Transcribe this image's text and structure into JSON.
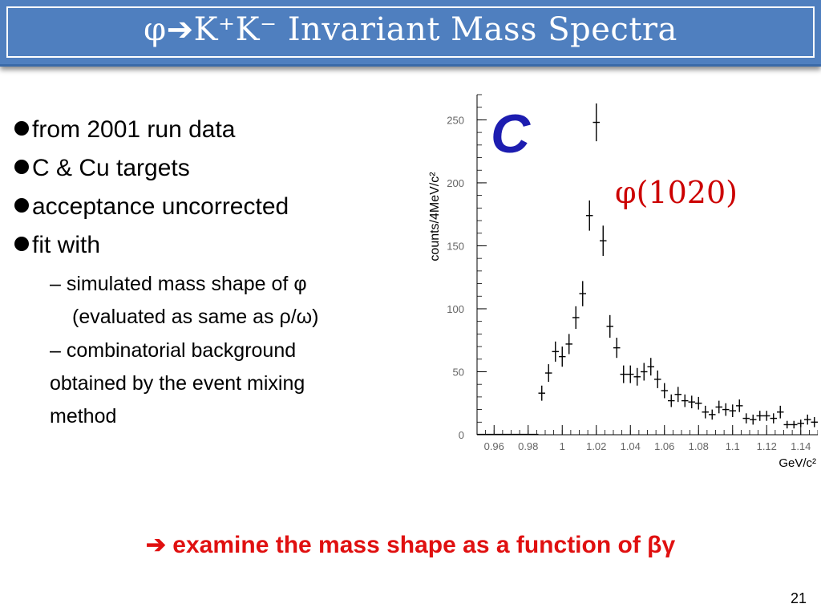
{
  "slide": {
    "title": "φ➔K⁺K⁻ Invariant Mass Spectra",
    "bullets": [
      "from 2001 run data",
      "C & Cu targets",
      "acceptance uncorrected",
      "fit with"
    ],
    "sub1_line1": "– simulated mass shape of φ",
    "sub1_line2": "(evaluated as same as ρ/ω)",
    "sub2_lines": [
      "– combinatorial background",
      "obtained by the event mixing",
      "method"
    ],
    "conclusion": "➔ examine the mass shape as a function of βγ",
    "page_number": "21",
    "accent_color": "#4f7fbf",
    "highlight_color": "#e01010"
  },
  "chart_data": {
    "type": "scatter",
    "panel_label": "C",
    "peak_label": "φ(1020)",
    "ylabel": "counts/4MeV/c²",
    "xlabel": "GeV/c²",
    "xlim": [
      0.95,
      1.15
    ],
    "ylim": [
      0,
      270
    ],
    "xticks": [
      0.96,
      0.98,
      1.0,
      1.02,
      1.04,
      1.06,
      1.08,
      1.1,
      1.12,
      1.14
    ],
    "xtick_labels": [
      "0.96",
      "0.98",
      "1",
      "1.02",
      "1.04",
      "1.06",
      "1.08",
      "1.1",
      "1.12",
      "1.14"
    ],
    "yticks": [
      0,
      50,
      100,
      150,
      200,
      250
    ],
    "ytick_labels": [
      "0",
      "50",
      "100",
      "150",
      "200",
      "250"
    ],
    "points": [
      {
        "x": 0.988,
        "y": 33,
        "err": 6
      },
      {
        "x": 0.992,
        "y": 49,
        "err": 7
      },
      {
        "x": 0.996,
        "y": 66,
        "err": 8
      },
      {
        "x": 1.0,
        "y": 62,
        "err": 8
      },
      {
        "x": 1.004,
        "y": 72,
        "err": 8
      },
      {
        "x": 1.008,
        "y": 93,
        "err": 9
      },
      {
        "x": 1.012,
        "y": 112,
        "err": 10
      },
      {
        "x": 1.016,
        "y": 174,
        "err": 12
      },
      {
        "x": 1.02,
        "y": 248,
        "err": 15
      },
      {
        "x": 1.024,
        "y": 154,
        "err": 12
      },
      {
        "x": 1.028,
        "y": 86,
        "err": 9
      },
      {
        "x": 1.032,
        "y": 69,
        "err": 8
      },
      {
        "x": 1.036,
        "y": 48,
        "err": 7
      },
      {
        "x": 1.04,
        "y": 48,
        "err": 7
      },
      {
        "x": 1.044,
        "y": 46,
        "err": 7
      },
      {
        "x": 1.048,
        "y": 50,
        "err": 7
      },
      {
        "x": 1.052,
        "y": 54,
        "err": 7
      },
      {
        "x": 1.056,
        "y": 44,
        "err": 7
      },
      {
        "x": 1.06,
        "y": 35,
        "err": 6
      },
      {
        "x": 1.064,
        "y": 27,
        "err": 5
      },
      {
        "x": 1.068,
        "y": 32,
        "err": 6
      },
      {
        "x": 1.072,
        "y": 27,
        "err": 5
      },
      {
        "x": 1.076,
        "y": 26,
        "err": 5
      },
      {
        "x": 1.08,
        "y": 25,
        "err": 5
      },
      {
        "x": 1.084,
        "y": 18,
        "err": 5
      },
      {
        "x": 1.088,
        "y": 16,
        "err": 4
      },
      {
        "x": 1.092,
        "y": 22,
        "err": 5
      },
      {
        "x": 1.096,
        "y": 20,
        "err": 5
      },
      {
        "x": 1.1,
        "y": 19,
        "err": 5
      },
      {
        "x": 1.104,
        "y": 23,
        "err": 5
      },
      {
        "x": 1.108,
        "y": 13,
        "err": 4
      },
      {
        "x": 1.112,
        "y": 12,
        "err": 4
      },
      {
        "x": 1.116,
        "y": 15,
        "err": 4
      },
      {
        "x": 1.12,
        "y": 15,
        "err": 4
      },
      {
        "x": 1.124,
        "y": 13,
        "err": 4
      },
      {
        "x": 1.128,
        "y": 18,
        "err": 5
      },
      {
        "x": 1.132,
        "y": 8,
        "err": 3
      },
      {
        "x": 1.136,
        "y": 8,
        "err": 3
      },
      {
        "x": 1.14,
        "y": 9,
        "err": 3
      },
      {
        "x": 1.144,
        "y": 12,
        "err": 4
      },
      {
        "x": 1.148,
        "y": 10,
        "err": 4
      }
    ]
  }
}
